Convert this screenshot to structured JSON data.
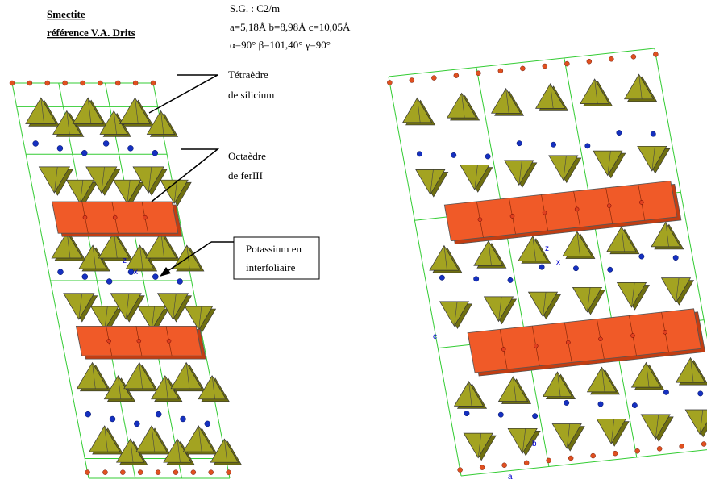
{
  "header": {
    "title": "Smectite",
    "reference": "référence V.A. Drits"
  },
  "crystal": {
    "space_group": "S.G. : C2/m",
    "cell_lengths": "a=5,18Å b=8,98Å c=10,05Å",
    "cell_angles": "α=90° β=101,40° γ=90°"
  },
  "callouts": [
    {
      "lines": [
        "Tétraèdre",
        "de silicium"
      ]
    },
    {
      "lines": [
        "Octaèdre",
        "de ferIII"
      ]
    },
    {
      "lines": [
        "Potassium en",
        "interfoliaire"
      ]
    }
  ],
  "axis_labels": {
    "left": [
      "z",
      "x"
    ],
    "right": [
      "z",
      "x",
      "a",
      "b",
      "c"
    ]
  }
}
